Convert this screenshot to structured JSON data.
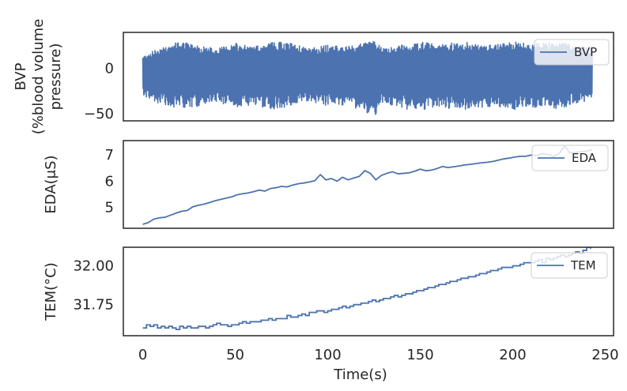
{
  "chart_data": [
    {
      "type": "line",
      "name": "bvp-panel",
      "ylabel": [
        "BVP",
        "(%blood volume",
        "pressure)"
      ],
      "xlim": [
        -10.5,
        254.5
      ],
      "ylim": [
        -58,
        40
      ],
      "yticks": [
        {
          "value": 0,
          "label": "0"
        },
        {
          "value": -50,
          "label": "−50"
        }
      ],
      "series": [
        {
          "name": "BVP",
          "color": "#4c72b0",
          "style": "dense-oscillation",
          "x_range": [
            0,
            243
          ],
          "envelope_x": [
            0,
            10,
            20,
            30,
            40,
            50,
            60,
            70,
            80,
            90,
            100,
            110,
            120,
            125,
            130,
            140,
            150,
            160,
            170,
            180,
            190,
            200,
            210,
            220,
            230,
            243
          ],
          "envelope_upper": [
            14,
            24,
            30,
            26,
            22,
            28,
            24,
            30,
            28,
            22,
            26,
            24,
            28,
            32,
            22,
            26,
            30,
            26,
            30,
            28,
            26,
            30,
            28,
            30,
            28,
            22
          ],
          "envelope_lower": [
            -30,
            -40,
            -44,
            -42,
            -38,
            -44,
            -40,
            -46,
            -42,
            -36,
            -42,
            -40,
            -48,
            -54,
            -38,
            -44,
            -48,
            -42,
            -46,
            -44,
            -42,
            -46,
            -44,
            -46,
            -42,
            -34
          ]
        }
      ]
    },
    {
      "type": "line",
      "name": "eda-panel",
      "ylabel": [
        "EDA(μS)"
      ],
      "xlim": [
        -10.5,
        254.5
      ],
      "ylim": [
        4.2,
        7.55
      ],
      "yticks": [
        {
          "value": 7,
          "label": "7"
        },
        {
          "value": 6,
          "label": "6"
        },
        {
          "value": 5,
          "label": "5"
        }
      ],
      "series": [
        {
          "name": "EDA",
          "color": "#4c72b0",
          "x": [
            0,
            3,
            6,
            9,
            12,
            15,
            18,
            21,
            24,
            27,
            30,
            33,
            36,
            39,
            42,
            45,
            48,
            51,
            54,
            57,
            60,
            63,
            66,
            69,
            72,
            75,
            78,
            81,
            84,
            87,
            90,
            93,
            96,
            99,
            102,
            105,
            108,
            111,
            114,
            117,
            120,
            123,
            126,
            129,
            132,
            135,
            138,
            141,
            144,
            147,
            150,
            153,
            156,
            159,
            162,
            165,
            168,
            171,
            174,
            177,
            180,
            183,
            186,
            189,
            192,
            195,
            198,
            201,
            204,
            207,
            210,
            213,
            216,
            219,
            222,
            225,
            228,
            231,
            234,
            237,
            240,
            243
          ],
          "y": [
            4.35,
            4.42,
            4.55,
            4.6,
            4.62,
            4.7,
            4.78,
            4.85,
            4.88,
            5.02,
            5.08,
            5.12,
            5.18,
            5.25,
            5.3,
            5.35,
            5.4,
            5.48,
            5.52,
            5.55,
            5.6,
            5.66,
            5.62,
            5.72,
            5.75,
            5.8,
            5.78,
            5.85,
            5.9,
            5.93,
            5.97,
            6.02,
            6.25,
            6.05,
            6.1,
            6.0,
            6.15,
            6.05,
            6.12,
            6.18,
            6.4,
            6.3,
            6.05,
            6.22,
            6.3,
            6.36,
            6.28,
            6.3,
            6.32,
            6.38,
            6.46,
            6.4,
            6.42,
            6.48,
            6.56,
            6.52,
            6.55,
            6.58,
            6.62,
            6.64,
            6.67,
            6.7,
            6.72,
            6.75,
            6.8,
            6.85,
            6.88,
            6.92,
            6.95,
            6.95,
            7.0,
            6.98,
            7.05,
            7.02,
            6.95,
            7.05,
            7.35,
            7.08,
            7.1,
            7.12,
            7.15,
            7.2
          ]
        }
      ]
    },
    {
      "type": "line",
      "name": "tem-panel",
      "ylabel": [
        "TEM(°C)"
      ],
      "xlim": [
        -10.5,
        254.5
      ],
      "ylim": [
        31.55,
        32.12
      ],
      "yticks": [
        {
          "value": 32.0,
          "label": "32.00"
        },
        {
          "value": 31.75,
          "label": "31.75"
        }
      ],
      "xticks": [
        {
          "value": 0,
          "label": "0"
        },
        {
          "value": 50,
          "label": "50"
        },
        {
          "value": 100,
          "label": "100"
        },
        {
          "value": 150,
          "label": "150"
        },
        {
          "value": 200,
          "label": "200"
        },
        {
          "value": 250,
          "label": "250"
        }
      ],
      "xlabel": "Time(s)",
      "series": [
        {
          "name": "TEM",
          "color": "#4c72b0",
          "style": "step",
          "x": [
            0,
            2,
            4,
            6,
            8,
            10,
            12,
            14,
            16,
            18,
            20,
            22,
            24,
            26,
            28,
            30,
            32,
            34,
            36,
            38,
            40,
            42,
            44,
            46,
            48,
            50,
            52,
            54,
            56,
            58,
            60,
            62,
            64,
            66,
            68,
            70,
            72,
            74,
            76,
            78,
            80,
            82,
            84,
            86,
            88,
            90,
            92,
            94,
            96,
            98,
            100,
            102,
            104,
            106,
            108,
            110,
            112,
            114,
            116,
            118,
            120,
            122,
            124,
            126,
            128,
            130,
            132,
            134,
            136,
            138,
            140,
            142,
            144,
            146,
            148,
            150,
            152,
            154,
            156,
            158,
            160,
            162,
            164,
            166,
            168,
            170,
            172,
            174,
            176,
            178,
            180,
            182,
            184,
            186,
            188,
            190,
            192,
            194,
            196,
            198,
            200,
            202,
            204,
            206,
            208,
            210,
            212,
            214,
            216,
            218,
            220,
            222,
            224,
            226,
            228,
            230,
            232,
            234,
            236,
            238,
            240,
            242
          ],
          "y": [
            31.6,
            31.62,
            31.61,
            31.62,
            31.6,
            31.61,
            31.6,
            31.61,
            31.6,
            31.59,
            31.61,
            31.6,
            31.61,
            31.6,
            31.6,
            31.61,
            31.61,
            31.6,
            31.61,
            31.62,
            31.63,
            31.62,
            31.62,
            31.61,
            31.62,
            31.62,
            31.63,
            31.64,
            31.63,
            31.64,
            31.64,
            31.64,
            31.65,
            31.65,
            31.66,
            31.65,
            31.66,
            31.66,
            31.66,
            31.68,
            31.67,
            31.67,
            31.68,
            31.69,
            31.68,
            31.7,
            31.7,
            31.71,
            31.71,
            31.7,
            31.71,
            31.72,
            31.72,
            31.73,
            31.74,
            31.73,
            31.74,
            31.75,
            31.75,
            31.76,
            31.76,
            31.77,
            31.78,
            31.77,
            31.78,
            31.79,
            31.79,
            31.8,
            31.81,
            31.8,
            31.81,
            31.82,
            31.82,
            31.83,
            31.84,
            31.84,
            31.85,
            31.86,
            31.86,
            31.87,
            31.88,
            31.88,
            31.89,
            31.9,
            31.9,
            31.91,
            31.92,
            31.92,
            31.93,
            31.93,
            31.94,
            31.95,
            31.95,
            31.96,
            31.97,
            31.97,
            31.98,
            31.99,
            31.99,
            31.99,
            32.0,
            32.0,
            32.01,
            32.02,
            32.02,
            32.02,
            32.03,
            32.04,
            32.02,
            32.05,
            32.04,
            32.05,
            32.06,
            32.07,
            32.06,
            32.07,
            32.08,
            32.09,
            32.08,
            32.1,
            32.12,
            32.11
          ]
        }
      ]
    }
  ]
}
